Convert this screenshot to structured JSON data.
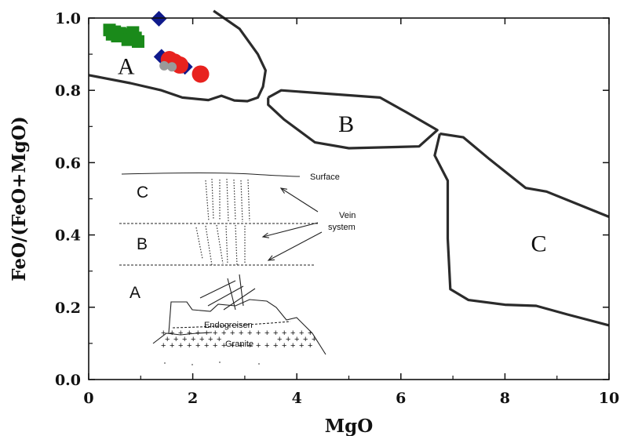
{
  "chart_data": {
    "type": "scatter",
    "title": "",
    "xlabel": "MgO",
    "ylabel": "FeO/(FeO+MgO)",
    "xlim": [
      0,
      10
    ],
    "ylim": [
      0.0,
      1.0
    ],
    "x_ticks": [
      "0",
      "2",
      "4",
      "6",
      "8",
      "10"
    ],
    "y_ticks": [
      "0.0",
      "0.2",
      "0.4",
      "0.6",
      "0.8",
      "1.0"
    ],
    "grid": false,
    "fields": [
      {
        "label": "A",
        "label_at": [
          0.72,
          0.86
        ],
        "boundary": [
          [
            0,
            0.842
          ],
          [
            0.8,
            0.82
          ],
          [
            1.4,
            0.8
          ],
          [
            1.8,
            0.78
          ],
          [
            2.3,
            0.773
          ],
          [
            2.55,
            0.785
          ],
          [
            2.8,
            0.772
          ],
          [
            3.05,
            0.77
          ],
          [
            3.25,
            0.78
          ],
          [
            3.35,
            0.81
          ],
          [
            3.4,
            0.855
          ],
          [
            3.25,
            0.9
          ],
          [
            2.9,
            0.97
          ],
          [
            2.6,
            1.0
          ],
          [
            2.4,
            1.02
          ]
        ]
      },
      {
        "label": "B",
        "label_at": [
          4.95,
          0.7
        ],
        "boundary": [
          [
            3.45,
            0.78
          ],
          [
            3.7,
            0.8
          ],
          [
            5.6,
            0.78
          ],
          [
            6.1,
            0.74
          ],
          [
            6.7,
            0.69
          ],
          [
            6.35,
            0.645
          ],
          [
            5.0,
            0.64
          ],
          [
            4.35,
            0.656
          ],
          [
            3.75,
            0.72
          ],
          [
            3.45,
            0.76
          ],
          [
            3.45,
            0.78
          ]
        ]
      },
      {
        "label": "C",
        "label_at": [
          8.65,
          0.37
        ],
        "boundary": [
          [
            6.75,
            0.68
          ],
          [
            7.2,
            0.67
          ],
          [
            7.7,
            0.61
          ],
          [
            8.4,
            0.53
          ],
          [
            8.8,
            0.52
          ],
          [
            10.0,
            0.45
          ],
          [
            10,
            0.45
          ],
          [
            6.75,
            0.68
          ],
          [
            6.65,
            0.62
          ],
          [
            6.9,
            0.55
          ],
          [
            6.9,
            0.39
          ],
          [
            6.95,
            0.25
          ],
          [
            7.3,
            0.22
          ],
          [
            8.0,
            0.207
          ],
          [
            8.6,
            0.204
          ],
          [
            9.2,
            0.18
          ],
          [
            10.0,
            0.15
          ]
        ]
      }
    ],
    "series": [
      {
        "marker": "square",
        "color": "#1a8a1a",
        "x": [
          0.4,
          0.5,
          0.6,
          0.7,
          0.8,
          0.9,
          0.55,
          0.75,
          0.95,
          0.45,
          0.85
        ],
        "y": [
          0.967,
          0.962,
          0.958,
          0.955,
          0.952,
          0.945,
          0.95,
          0.94,
          0.935,
          0.955,
          0.96
        ]
      },
      {
        "marker": "diamond",
        "color": "#0f1a8c",
        "x": [
          1.35,
          1.4,
          1.55,
          1.65,
          1.8,
          1.85
        ],
        "y": [
          0.998,
          0.893,
          0.88,
          0.875,
          0.868,
          0.865
        ]
      },
      {
        "marker": "circle",
        "color": "#e8221e",
        "x": [
          1.55,
          1.65,
          1.75,
          2.15
        ],
        "y": [
          0.885,
          0.878,
          0.87,
          0.845
        ]
      },
      {
        "marker": "circle",
        "color": "#9a9a9a",
        "x": [
          1.45,
          1.6
        ],
        "y": [
          0.868,
          0.865
        ]
      }
    ],
    "inset": {
      "zone_labels": [
        "C",
        "B",
        "A"
      ],
      "surface_label": "Surface",
      "vein_label_line1": "Vein",
      "vein_label_line2": "system",
      "endogreisen_label": "Endogreisen",
      "granite_label": "Granite"
    }
  }
}
